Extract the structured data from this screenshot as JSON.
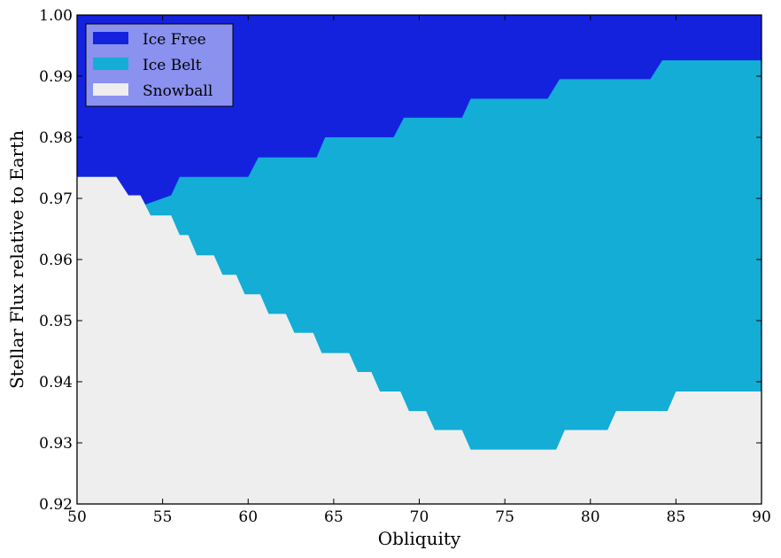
{
  "chart_data": {
    "type": "area",
    "xlabel": "Obliquity",
    "ylabel": "Stellar Flux relative to Earth",
    "xlim": [
      50,
      90
    ],
    "ylim": [
      0.92,
      1.0
    ],
    "grid": false,
    "legend_position": "top-left",
    "x_ticks": [
      "50",
      "55",
      "60",
      "65",
      "70",
      "75",
      "80",
      "85",
      "90"
    ],
    "y_ticks": [
      "0.92",
      "0.93",
      "0.94",
      "0.95",
      "0.96",
      "0.97",
      "0.98",
      "0.99",
      "1.00"
    ],
    "series": [
      {
        "name": "Ice Free",
        "color": "#1422de"
      },
      {
        "name": "Ice Belt",
        "color": "#13add6"
      },
      {
        "name": "Snowball",
        "color": "#eeeeee"
      }
    ],
    "boundaries": {
      "ice_belt_upper": [
        [
          50.0,
          0.9735
        ],
        [
          52.3,
          0.9735
        ],
        [
          53.0,
          0.9705
        ],
        [
          53.7,
          0.9705
        ],
        [
          54.0,
          0.969
        ],
        [
          55.5,
          0.9705
        ],
        [
          56.0,
          0.9735
        ],
        [
          60.0,
          0.9735
        ],
        [
          60.6,
          0.9767
        ],
        [
          64.0,
          0.9767
        ],
        [
          64.5,
          0.98
        ],
        [
          68.5,
          0.98
        ],
        [
          69.1,
          0.9832
        ],
        [
          72.5,
          0.9832
        ],
        [
          73.0,
          0.9863
        ],
        [
          77.5,
          0.9863
        ],
        [
          78.2,
          0.9895
        ],
        [
          83.5,
          0.9895
        ],
        [
          84.2,
          0.9926
        ],
        [
          90.0,
          0.9926
        ]
      ],
      "snowball_upper": [
        [
          50.0,
          0.9735
        ],
        [
          52.3,
          0.9735
        ],
        [
          53.0,
          0.9705
        ],
        [
          53.7,
          0.9705
        ],
        [
          54.3,
          0.9672
        ],
        [
          55.5,
          0.9672
        ],
        [
          56.0,
          0.964
        ],
        [
          56.5,
          0.964
        ],
        [
          57.0,
          0.9607
        ],
        [
          58.0,
          0.9607
        ],
        [
          58.5,
          0.9575
        ],
        [
          59.3,
          0.9575
        ],
        [
          59.8,
          0.9543
        ],
        [
          60.7,
          0.9543
        ],
        [
          61.2,
          0.9511
        ],
        [
          62.2,
          0.9511
        ],
        [
          62.7,
          0.948
        ],
        [
          63.8,
          0.948
        ],
        [
          64.3,
          0.9447
        ],
        [
          65.9,
          0.9447
        ],
        [
          66.4,
          0.9416
        ],
        [
          67.2,
          0.9416
        ],
        [
          67.7,
          0.9384
        ],
        [
          68.9,
          0.9384
        ],
        [
          69.4,
          0.9352
        ],
        [
          70.4,
          0.9352
        ],
        [
          70.9,
          0.9321
        ],
        [
          72.5,
          0.9321
        ],
        [
          73.0,
          0.9289
        ],
        [
          78.0,
          0.9289
        ],
        [
          78.5,
          0.9321
        ],
        [
          81.0,
          0.9321
        ],
        [
          81.5,
          0.9352
        ],
        [
          84.5,
          0.9352
        ],
        [
          85.0,
          0.9384
        ],
        [
          90.0,
          0.9384
        ]
      ]
    }
  }
}
